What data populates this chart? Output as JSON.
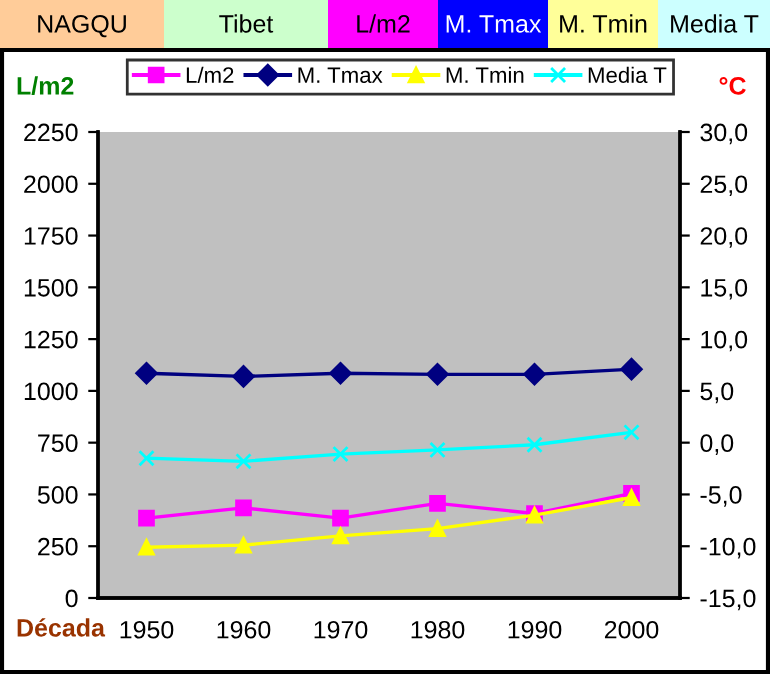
{
  "chart_data": {
    "type": "line",
    "title": "NAGQU",
    "subtitle": "Tibet",
    "annotations": [
      "L/m2",
      "M. Tmax",
      "M. Tmin",
      "Media T"
    ],
    "xlabel": "Década",
    "ylabel": "L/m2",
    "y2label": "°C",
    "categories": [
      "1950",
      "1960",
      "1970",
      "1980",
      "1990",
      "2000"
    ],
    "series": [
      {
        "name": "L/m2",
        "color": "#ff00ff",
        "marker": "square",
        "values": [
          386,
          435,
          386,
          457,
          408,
          505
        ]
      },
      {
        "name": "M. Tmax",
        "color": "#000080",
        "marker": "diamond",
        "axis": "y2",
        "values": [
          6.7,
          6.4,
          6.7,
          6.6,
          6.6,
          7.1
        ]
      },
      {
        "name": "M. Tmin",
        "color": "#ffff00",
        "marker": "triangle",
        "axis": "y2",
        "values": [
          -10.1,
          -9.9,
          -9.0,
          -8.3,
          -7.0,
          -5.3
        ]
      },
      {
        "name": "Media T",
        "color": "#00ffff",
        "marker": "cross",
        "axis": "y2",
        "values": [
          -1.5,
          -1.8,
          -1.1,
          -0.7,
          -0.2,
          1.0
        ]
      }
    ],
    "ylim": [
      0,
      2250
    ],
    "yticks": [
      0,
      250,
      500,
      750,
      1000,
      1250,
      1500,
      1750,
      2000,
      2250
    ],
    "y2lim": [
      -15,
      30
    ],
    "y2ticks": [
      {
        "value": -15,
        "label": "-15,0"
      },
      {
        "value": -10,
        "label": "-10,0"
      },
      {
        "value": -5,
        "label": "-5,0"
      },
      {
        "value": 0,
        "label": "0,0"
      },
      {
        "value": 5,
        "label": "5,0"
      },
      {
        "value": 10,
        "label": "10,0"
      },
      {
        "value": 15,
        "label": "15,0"
      },
      {
        "value": 20,
        "label": "20,0"
      },
      {
        "value": 25,
        "label": "25,0"
      },
      {
        "value": 30,
        "label": "30,0"
      }
    ],
    "legend": "top",
    "grid": false
  }
}
